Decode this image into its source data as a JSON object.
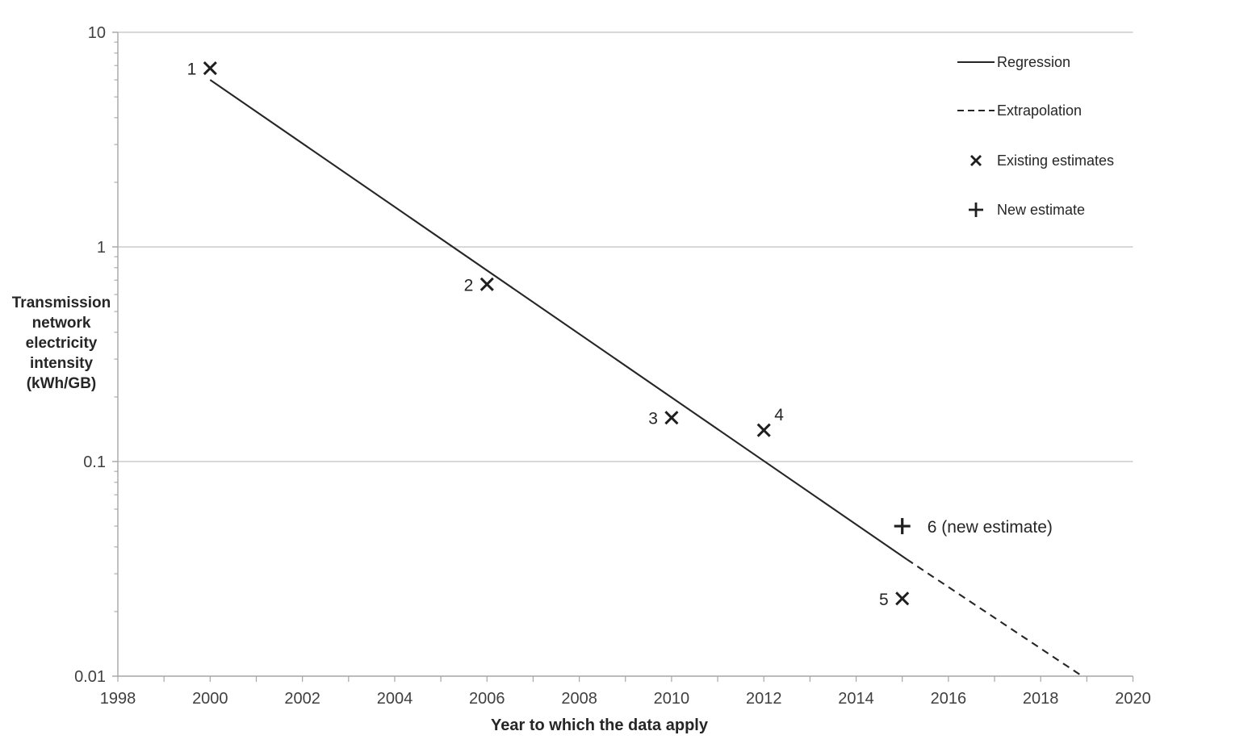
{
  "chart_data": {
    "type": "scatter",
    "title": "",
    "xlabel": "Year to which the data apply",
    "ylabel": "Transmission network electricity intensity (kWh/GB)",
    "ylabel_lines": [
      "Transmission",
      "network",
      "electricity",
      "intensity",
      "(kWh/GB)"
    ],
    "x_axis": {
      "min": 1998,
      "max": 2020,
      "tick_step": 2,
      "minor_step": 1,
      "tick_labels": [
        "1998",
        "2000",
        "2002",
        "2004",
        "2006",
        "2008",
        "2010",
        "2012",
        "2014",
        "2016",
        "2018",
        "2020"
      ]
    },
    "y_axis": {
      "scale": "log",
      "min": 0.01,
      "max": 10,
      "tick_values": [
        10,
        1,
        0.1,
        0.01
      ],
      "tick_labels": [
        "10",
        "1",
        "0.1",
        "0.01"
      ],
      "grid": "horizontal-major"
    },
    "points": [
      {
        "id": "1",
        "label": "1",
        "year": 2000,
        "value": 6.8,
        "marker": "x",
        "label_side": "left"
      },
      {
        "id": "2",
        "label": "2",
        "year": 2006,
        "value": 0.67,
        "marker": "x",
        "label_side": "left"
      },
      {
        "id": "3",
        "label": "3",
        "year": 2010,
        "value": 0.16,
        "marker": "x",
        "label_side": "left"
      },
      {
        "id": "4",
        "label": "4",
        "year": 2012,
        "value": 0.14,
        "marker": "x",
        "label_side": "above-right"
      },
      {
        "id": "5",
        "label": "5",
        "year": 2015,
        "value": 0.023,
        "marker": "x",
        "label_side": "left"
      },
      {
        "id": "6",
        "label": "6 (new estimate)",
        "year": 2015,
        "value": 0.05,
        "marker": "plus",
        "label_side": "right"
      }
    ],
    "series": [
      {
        "name": "Regression",
        "style": "solid",
        "x": [
          2000.0,
          2015.1
        ],
        "y": [
          6.0,
          0.035
        ]
      },
      {
        "name": "Extrapolation",
        "style": "dashed",
        "x": [
          2015.1,
          2018.9
        ],
        "y": [
          0.035,
          0.01
        ]
      }
    ],
    "legend": {
      "position": "top-right",
      "items": [
        {
          "type": "solid-line",
          "label": "Regression"
        },
        {
          "type": "dashed-line",
          "label": "Extrapolation"
        },
        {
          "type": "x-marker",
          "label": "Existing estimates"
        },
        {
          "type": "plus-marker",
          "label": "New estimate"
        }
      ]
    },
    "colors": {
      "line": "#262626",
      "marker": "#1f1f1f",
      "axis": "#a6a6a6",
      "gridline": "#c0c0c0",
      "tick_text": "#404040",
      "point_label_text": "#262626"
    }
  }
}
